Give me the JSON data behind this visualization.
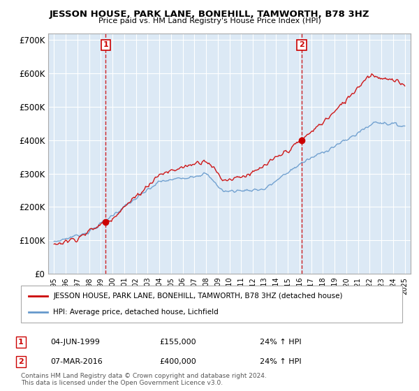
{
  "title": "JESSON HOUSE, PARK LANE, BONEHILL, TAMWORTH, B78 3HZ",
  "subtitle": "Price paid vs. HM Land Registry's House Price Index (HPI)",
  "legend_label_red": "JESSON HOUSE, PARK LANE, BONEHILL, TAMWORTH, B78 3HZ (detached house)",
  "legend_label_blue": "HPI: Average price, detached house, Lichfield",
  "sale1_date": "04-JUN-1999",
  "sale1_price": 155000,
  "sale1_pct": "24% ↑ HPI",
  "sale2_date": "07-MAR-2016",
  "sale2_price": 400000,
  "sale2_pct": "24% ↑ HPI",
  "footer": "Contains HM Land Registry data © Crown copyright and database right 2024.\nThis data is licensed under the Open Government Licence v3.0.",
  "vline1_x": 1999.42,
  "vline2_x": 2016.18,
  "sale1_marker_x": 1999.42,
  "sale1_marker_y": 155000,
  "sale2_marker_x": 2016.18,
  "sale2_marker_y": 400000,
  "ylim": [
    0,
    720000
  ],
  "xlim": [
    1994.5,
    2025.5
  ],
  "yticks": [
    0,
    100000,
    200000,
    300000,
    400000,
    500000,
    600000,
    700000
  ],
  "ytick_labels": [
    "£0",
    "£100K",
    "£200K",
    "£300K",
    "£400K",
    "£500K",
    "£600K",
    "£700K"
  ],
  "red_color": "#cc0000",
  "blue_color": "#6699cc",
  "vline_color": "#cc0000",
  "plot_bg_color": "#dce9f5",
  "fig_bg_color": "#ffffff",
  "grid_color": "#ffffff"
}
